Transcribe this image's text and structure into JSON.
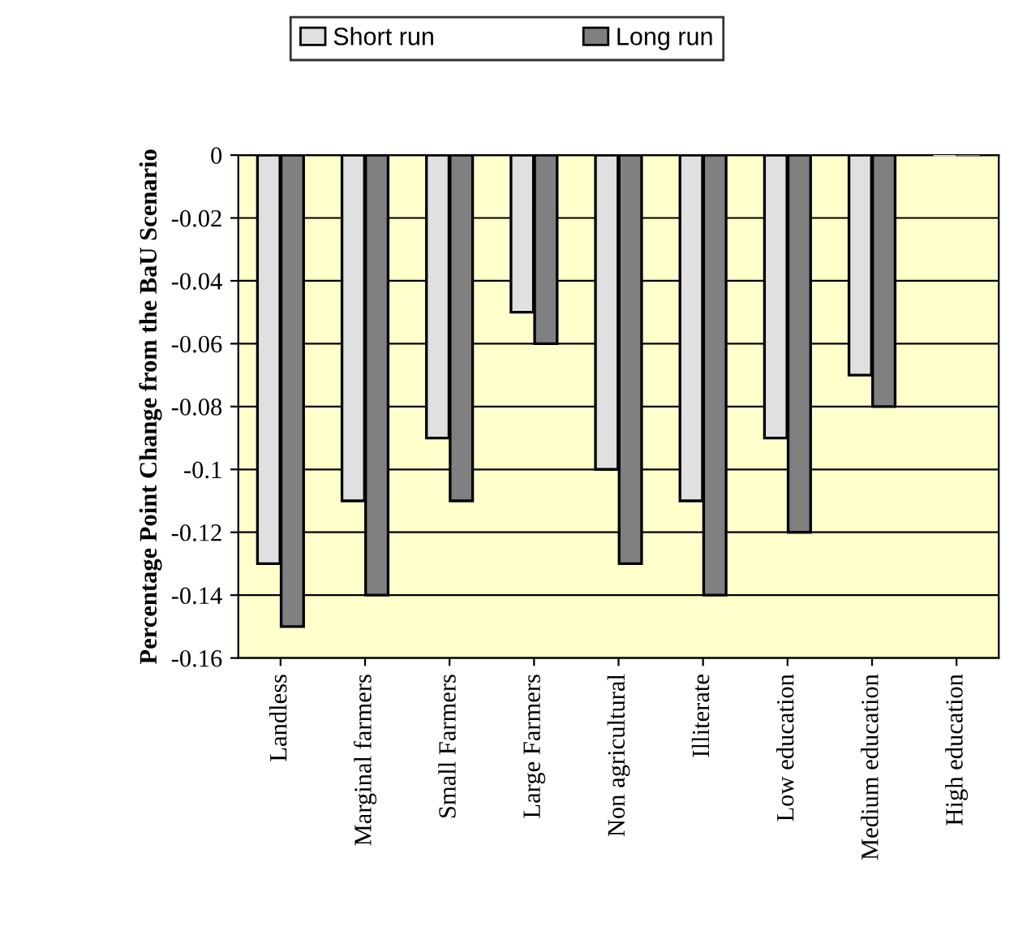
{
  "chart_data": {
    "type": "bar",
    "ylabel": "Percentage Point Change from the BaU Scenario",
    "categories": [
      "Landless",
      "Marginal farmers",
      "Small Farmers",
      "Large Farmers",
      "Non agricultural",
      "Illiterate",
      "Low education",
      "Medium education",
      "High education"
    ],
    "series": [
      {
        "name": "Short run",
        "color": "#e0e0e0",
        "values": [
          -0.13,
          -0.11,
          -0.09,
          -0.05,
          -0.1,
          -0.11,
          -0.09,
          -0.07,
          0
        ]
      },
      {
        "name": "Long run",
        "color": "#808080",
        "values": [
          -0.15,
          -0.14,
          -0.11,
          -0.06,
          -0.13,
          -0.14,
          -0.12,
          -0.08,
          0
        ]
      }
    ],
    "ylim": [
      -0.16,
      0
    ],
    "yticks": [
      {
        "value": -0.16,
        "label": "-0.16"
      },
      {
        "value": -0.14,
        "label": "-0.14"
      },
      {
        "value": -0.12,
        "label": "-0.12"
      },
      {
        "value": -0.1,
        "label": "-0.1"
      },
      {
        "value": -0.08,
        "label": "-0.08"
      },
      {
        "value": -0.06,
        "label": "-0.06"
      },
      {
        "value": -0.04,
        "label": "-0.04"
      },
      {
        "value": -0.02,
        "label": "-0.02"
      },
      0
    ],
    "grid": "y",
    "legend": "top"
  }
}
